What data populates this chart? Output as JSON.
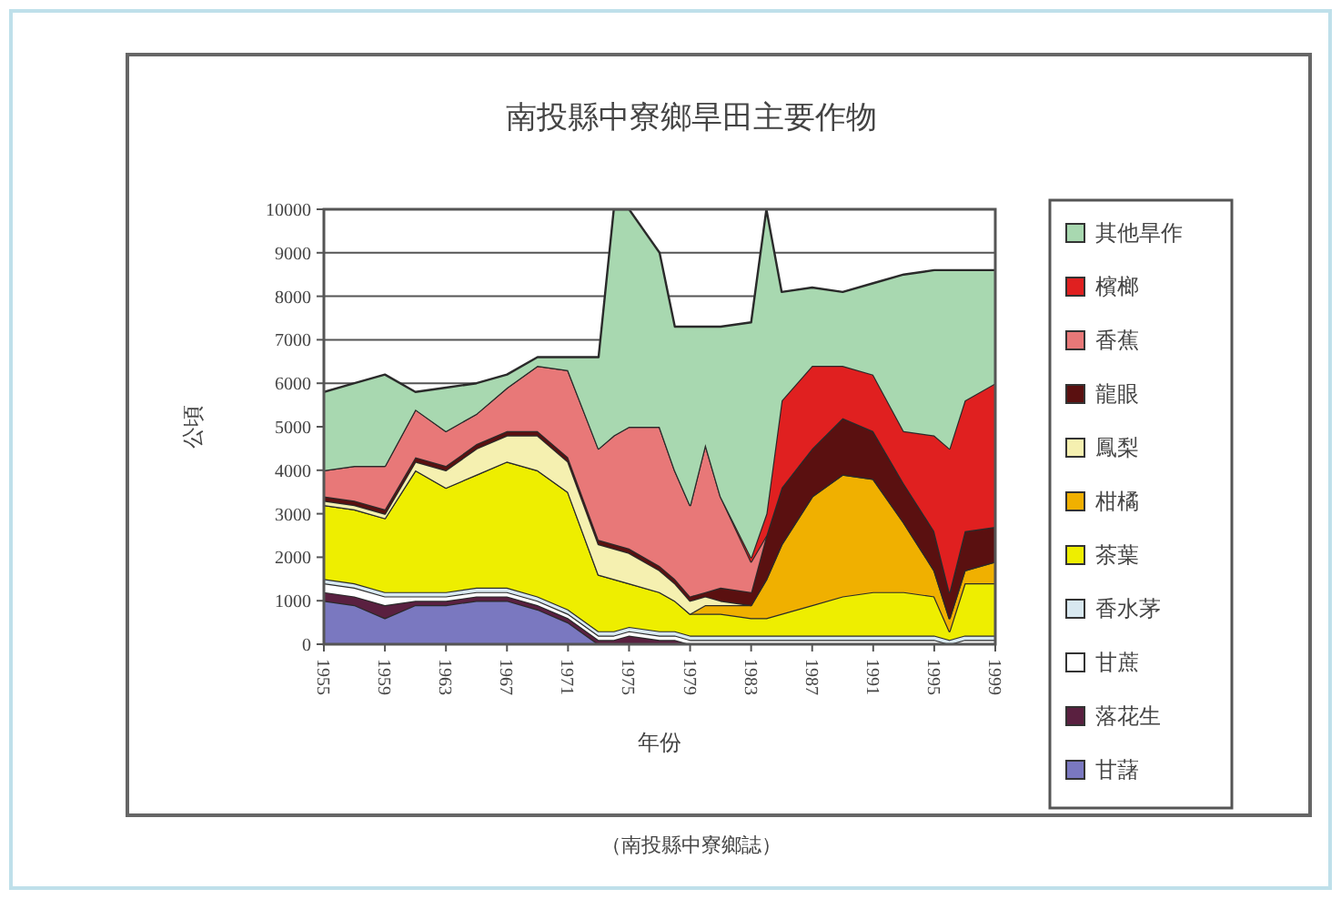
{
  "chart_data": {
    "type": "area",
    "stacked": true,
    "title": "南投縣中寮鄉旱田主要作物",
    "xlabel": "年份",
    "ylabel": "公頃",
    "annotations": [
      "（南投縣中寮鄉誌）"
    ],
    "x": [
      1955,
      1957,
      1959,
      1961,
      1963,
      1965,
      1967,
      1969,
      1971,
      1973,
      1974,
      1975,
      1977,
      1978,
      1979,
      1980,
      1981,
      1983,
      1984,
      1985,
      1987,
      1989,
      1991,
      1993,
      1995,
      1996,
      1997,
      1999
    ],
    "xlim": [
      1955,
      1999
    ],
    "xticks": [
      1955,
      1959,
      1963,
      1967,
      1971,
      1975,
      1979,
      1983,
      1987,
      1991,
      1995,
      1999
    ],
    "ylim": [
      0,
      10000
    ],
    "yticks": [
      0,
      1000,
      2000,
      3000,
      4000,
      5000,
      6000,
      7000,
      8000,
      9000,
      10000
    ],
    "grid": "y",
    "legend": "right",
    "series": [
      {
        "name": "甘藷",
        "color": "#7a78c0",
        "values": [
          1000,
          900,
          600,
          900,
          900,
          1000,
          1000,
          800,
          500,
          0,
          0,
          0,
          0,
          0,
          0,
          0,
          0,
          0,
          0,
          0,
          0,
          0,
          0,
          0,
          0,
          0,
          0,
          0
        ]
      },
      {
        "name": "落花生",
        "color": "#5a2040",
        "values": [
          200,
          200,
          300,
          100,
          100,
          100,
          100,
          100,
          100,
          100,
          100,
          200,
          100,
          100,
          0,
          0,
          0,
          0,
          0,
          0,
          0,
          0,
          0,
          0,
          0,
          0,
          0,
          0
        ]
      },
      {
        "name": "甘蔗",
        "color": "#ffffff",
        "values": [
          200,
          200,
          200,
          100,
          100,
          100,
          100,
          100,
          100,
          100,
          100,
          100,
          100,
          100,
          100,
          100,
          100,
          100,
          100,
          100,
          100,
          100,
          100,
          100,
          100,
          0,
          100,
          100
        ]
      },
      {
        "name": "香水茅",
        "color": "#d8e8f0",
        "values": [
          100,
          100,
          100,
          100,
          100,
          100,
          100,
          100,
          100,
          100,
          100,
          100,
          100,
          100,
          100,
          100,
          100,
          100,
          100,
          100,
          100,
          100,
          100,
          100,
          100,
          100,
          100,
          100
        ]
      },
      {
        "name": "茶葉",
        "color": "#eeee00",
        "values": [
          1700,
          1700,
          1700,
          2800,
          2400,
          2600,
          2900,
          2900,
          2700,
          1300,
          1200,
          1000,
          900,
          700,
          500,
          500,
          500,
          400,
          400,
          500,
          700,
          900,
          1000,
          1000,
          900,
          200,
          1200,
          1200
        ]
      },
      {
        "name": "柑橘",
        "color": "#f0b000",
        "values": [
          0,
          0,
          0,
          0,
          0,
          0,
          0,
          0,
          0,
          0,
          0,
          0,
          0,
          0,
          0,
          200,
          200,
          300,
          900,
          1600,
          2500,
          2800,
          2600,
          1600,
          600,
          300,
          300,
          500
        ]
      },
      {
        "name": "鳳梨",
        "color": "#f5f0b0",
        "values": [
          100,
          100,
          100,
          200,
          400,
          600,
          600,
          800,
          700,
          700,
          700,
          700,
          500,
          400,
          300,
          200,
          100,
          0,
          0,
          0,
          0,
          0,
          0,
          0,
          0,
          0,
          0,
          0
        ]
      },
      {
        "name": "龍眼",
        "color": "#5a1010",
        "values": [
          100,
          100,
          100,
          100,
          100,
          100,
          100,
          100,
          100,
          100,
          100,
          100,
          100,
          100,
          100,
          100,
          300,
          300,
          1000,
          1300,
          1100,
          1300,
          1100,
          900,
          900,
          600,
          900,
          800
        ]
      },
      {
        "name": "香蕉",
        "color": "#e87878",
        "values": [
          600,
          800,
          1000,
          1100,
          800,
          700,
          1000,
          1500,
          2000,
          2100,
          2500,
          2800,
          3200,
          2500,
          2100,
          3400,
          2100,
          700,
          0,
          0,
          0,
          0,
          0,
          0,
          0,
          0,
          0,
          0
        ]
      },
      {
        "name": "檳榔",
        "color": "#e02020",
        "values": [
          0,
          0,
          0,
          0,
          0,
          0,
          0,
          0,
          0,
          0,
          0,
          0,
          0,
          0,
          0,
          0,
          0,
          100,
          500,
          2000,
          1900,
          1200,
          1300,
          1200,
          2200,
          3300,
          3000,
          3300
        ]
      },
      {
        "name": "其他旱作",
        "color": "#a8d8b0",
        "values": [
          1800,
          1900,
          2100,
          400,
          1000,
          700,
          300,
          200,
          300,
          2100,
          5200,
          5000,
          4000,
          3300,
          4100,
          2700,
          3900,
          5400,
          7000,
          2500,
          1800,
          1700,
          2100,
          3600,
          3800,
          4100,
          3000,
          2600
        ]
      }
    ]
  }
}
